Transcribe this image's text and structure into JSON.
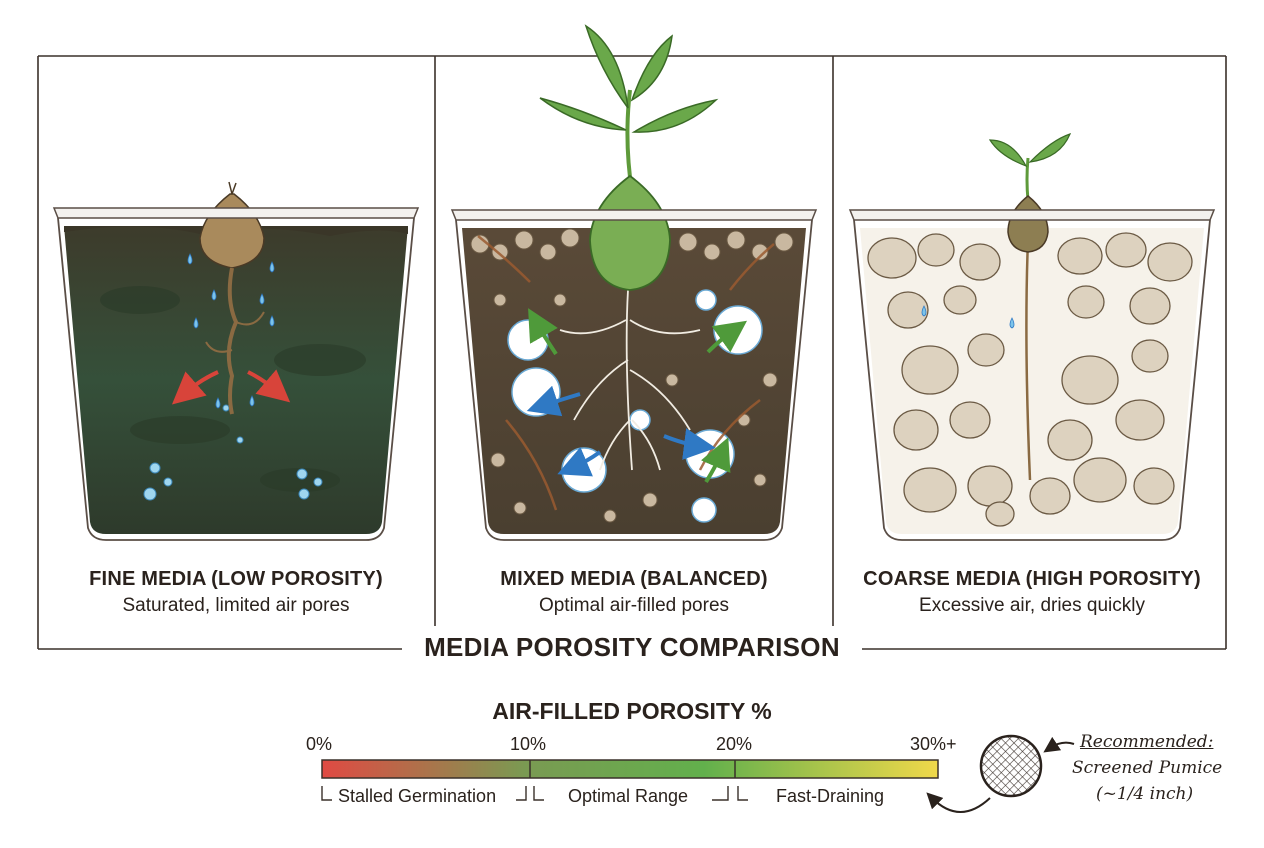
{
  "panels": [
    {
      "key": "fine",
      "title": "FINE MEDIA",
      "paren": "(LOW POROSITY)",
      "caption": "Saturated, limited air pores"
    },
    {
      "key": "mixed",
      "title": "MIXED MEDIA",
      "paren": "(BALANCED)",
      "caption": "Optimal air-filled pores"
    },
    {
      "key": "coarse",
      "title": "COARSE MEDIA",
      "paren": "(HIGH POROSITY)",
      "caption": "Excessive air, dries quickly"
    }
  ],
  "main_title": "MEDIA POROSITY COMPARISON",
  "scale": {
    "title": "AIR-FILLED POROSITY %",
    "ticks": [
      "0%",
      "10%",
      "20%",
      "30%+"
    ],
    "ranges": [
      "Stalled Germination",
      "Optimal Range",
      "Fast-Draining"
    ],
    "colors": [
      "#e04a43",
      "#7a9a52",
      "#62b04c",
      "#f0d84a"
    ]
  },
  "recommendation": {
    "heading": "Recommended:",
    "line1": "Screened Pumice",
    "line2": "(~1/4 inch)"
  }
}
